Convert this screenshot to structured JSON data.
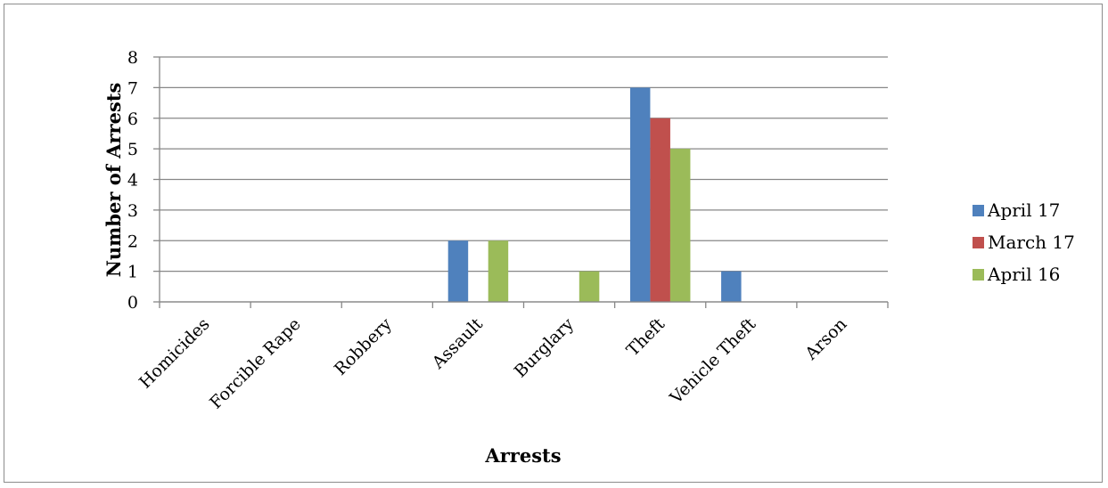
{
  "chart_data": {
    "type": "bar",
    "title": "",
    "xlabel": "Arrests",
    "ylabel": "Number of Arrests",
    "categories": [
      "Homicides",
      "Forcible Rape",
      "Robbery",
      "Assault",
      "Burglary",
      "Theft",
      "Vehicle Theft",
      "Arson"
    ],
    "series": [
      {
        "name": "April 17",
        "color": "#4f81bd",
        "values": [
          0,
          0,
          0,
          2,
          0,
          7,
          1,
          0
        ]
      },
      {
        "name": "March 17",
        "color": "#c0504d",
        "values": [
          0,
          0,
          0,
          0,
          0,
          6,
          0,
          0
        ]
      },
      {
        "name": "April 16",
        "color": "#9bbb59",
        "values": [
          0,
          0,
          0,
          2,
          1,
          5,
          0,
          0
        ]
      }
    ],
    "ylim": [
      0,
      8
    ],
    "yticks": [
      0,
      1,
      2,
      3,
      4,
      5,
      6,
      7,
      8
    ],
    "grid": true,
    "legend_position": "right"
  }
}
